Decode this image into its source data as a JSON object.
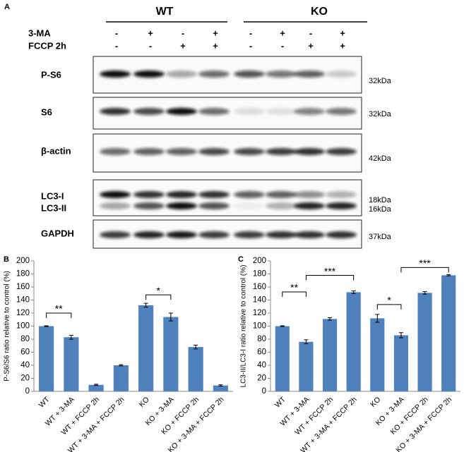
{
  "panel_a": {
    "label": "A",
    "groups": [
      "WT",
      "KO"
    ],
    "treatments": [
      {
        "name": "3-MA",
        "signs": [
          "-",
          "+",
          "-",
          "+",
          "-",
          "+",
          "-",
          "+"
        ]
      },
      {
        "name": "FCCP 2h",
        "signs": [
          "-",
          "-",
          "+",
          "+",
          "-",
          "-",
          "+",
          "+"
        ]
      }
    ],
    "blots": [
      {
        "names": [
          "P-S6"
        ],
        "sizes": [
          "32kDa"
        ]
      },
      {
        "names": [
          "S6"
        ],
        "sizes": [
          "32kDa"
        ]
      },
      {
        "names": [
          "β-actin"
        ],
        "sizes": [
          "42kDa"
        ]
      },
      {
        "names": [
          "LC3-I",
          "LC3-II"
        ],
        "sizes": [
          "18kDa",
          "16kDa"
        ]
      },
      {
        "names": [
          "GAPDH"
        ],
        "sizes": [
          "37kDa"
        ]
      }
    ]
  },
  "chart_data": [
    {
      "type": "bar",
      "panel_label": "B",
      "ylabel": "P-S6/S6 ratio relative to control (%)",
      "categories": [
        "WT",
        "WT + 3-MA",
        "WT + FCCP 2h",
        "WT + 3-MA + FCCP 2h",
        "KO",
        "KO + 3-MA",
        "KO + FCCP 2h",
        "KO + 3-MA + FCCP 2h"
      ],
      "values": [
        100,
        83,
        10,
        40,
        132,
        114,
        68,
        9
      ],
      "errors": [
        0.5,
        3,
        1,
        1,
        3,
        6,
        3,
        1
      ],
      "color": "#4f81bd",
      "ylim": [
        0,
        200
      ],
      "yticks": [
        0,
        20,
        40,
        60,
        80,
        100,
        120,
        140,
        160,
        180,
        200
      ],
      "annotations": [
        "**",
        "*"
      ]
    },
    {
      "type": "bar",
      "panel_label": "C",
      "ylabel": "LC3-II/LC3-I ratio relative to control (%)",
      "categories": [
        "WT",
        "WT + 3-MA",
        "WT + FCCP 2h",
        "WT + 3-MA + FCCP 2h",
        "KO",
        "KO + 3-MA",
        "KO + FCCP 2h",
        "KO + 3-MA + FCCP 2h"
      ],
      "values": [
        100,
        76,
        111,
        152,
        112,
        86,
        151,
        178
      ],
      "errors": [
        0.5,
        3,
        2,
        2,
        6,
        4,
        2,
        1
      ],
      "color": "#4f81bd",
      "ylim": [
        0,
        200
      ],
      "yticks": [
        0,
        20,
        40,
        60,
        80,
        100,
        120,
        140,
        160,
        180,
        200
      ],
      "annotations": [
        "**",
        "***",
        "*",
        "***"
      ]
    }
  ]
}
